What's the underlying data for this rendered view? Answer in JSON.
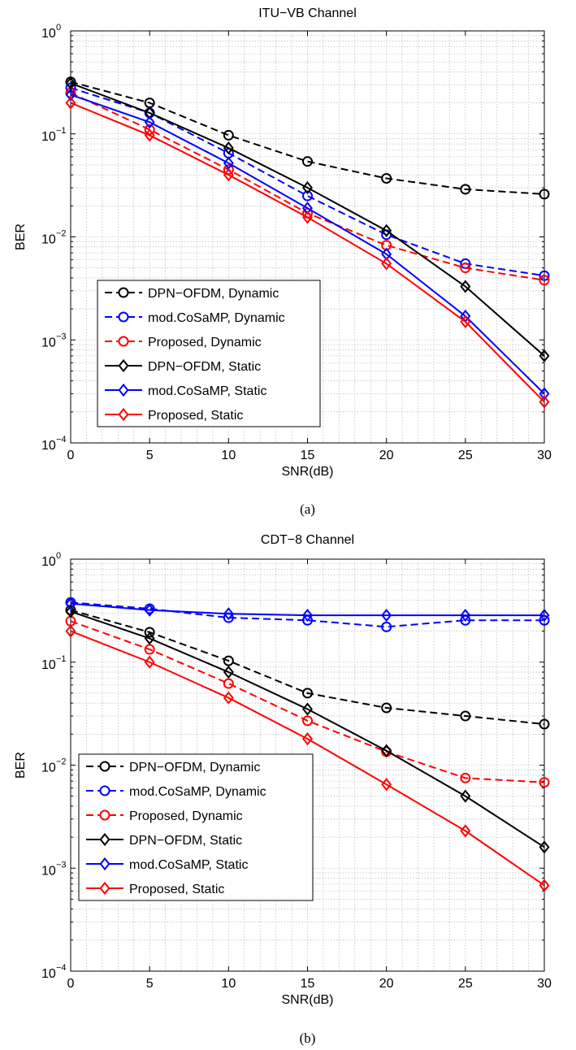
{
  "chart_data": [
    {
      "type": "line",
      "title": "ITU−VB Channel",
      "xlabel": "SNR(dB)",
      "ylabel": "BER",
      "caption": "(a)",
      "xlim": [
        0,
        30
      ],
      "ylim": [
        0.0001,
        1
      ],
      "yscale": "log",
      "grid": true,
      "legend_position": "lower-left",
      "x_ticks": [
        "0",
        "5",
        "10",
        "15",
        "20",
        "25",
        "30"
      ],
      "y_ticks": [
        {
          "base": "10",
          "exp": "0"
        },
        {
          "base": "10",
          "exp": "−1"
        },
        {
          "base": "10",
          "exp": "−2"
        },
        {
          "base": "10",
          "exp": "−3"
        },
        {
          "base": "10",
          "exp": "−4"
        }
      ],
      "series": [
        {
          "name": "DPN−OFDM, Dynamic",
          "color": "#000000",
          "dash": "dashed",
          "marker": "circle",
          "x": [
            0,
            5,
            10,
            15,
            20,
            25,
            30
          ],
          "y": [
            0.32,
            0.2,
            0.097,
            0.054,
            0.037,
            0.029,
            0.026
          ]
        },
        {
          "name": "mod.CoSaMP, Dynamic",
          "color": "#0000ff",
          "dash": "dashed",
          "marker": "circle",
          "x": [
            0,
            5,
            10,
            15,
            20,
            25,
            30
          ],
          "y": [
            0.28,
            0.16,
            0.065,
            0.025,
            0.0105,
            0.0055,
            0.0042
          ]
        },
        {
          "name": "Proposed, Dynamic",
          "color": "#ff0000",
          "dash": "dashed",
          "marker": "circle",
          "x": [
            0,
            5,
            10,
            15,
            20,
            25,
            30
          ],
          "y": [
            0.25,
            0.11,
            0.045,
            0.017,
            0.0083,
            0.005,
            0.0038
          ]
        },
        {
          "name": "DPN−OFDM, Static",
          "color": "#000000",
          "dash": "solid",
          "marker": "diamond",
          "x": [
            0,
            5,
            10,
            15,
            20,
            25,
            30
          ],
          "y": [
            0.31,
            0.16,
            0.073,
            0.03,
            0.0115,
            0.0033,
            0.0007
          ]
        },
        {
          "name": "mod.CoSaMP, Static",
          "color": "#0000ff",
          "dash": "solid",
          "marker": "diamond",
          "x": [
            0,
            5,
            10,
            15,
            20,
            25,
            30
          ],
          "y": [
            0.24,
            0.13,
            0.052,
            0.019,
            0.0068,
            0.0017,
            0.0003
          ]
        },
        {
          "name": "Proposed, Static",
          "color": "#ff0000",
          "dash": "solid",
          "marker": "diamond",
          "x": [
            0,
            5,
            10,
            15,
            20,
            25,
            30
          ],
          "y": [
            0.2,
            0.097,
            0.04,
            0.0155,
            0.0055,
            0.0015,
            0.00025
          ]
        }
      ]
    },
    {
      "type": "line",
      "title": "CDT−8 Channel",
      "xlabel": "SNR(dB)",
      "ylabel": "BER",
      "caption": "(b)",
      "xlim": [
        0,
        30
      ],
      "ylim": [
        0.0001,
        1
      ],
      "yscale": "log",
      "grid": true,
      "legend_position": "lower-left",
      "x_ticks": [
        "0",
        "5",
        "10",
        "15",
        "20",
        "25",
        "30"
      ],
      "y_ticks": [
        {
          "base": "10",
          "exp": "0"
        },
        {
          "base": "10",
          "exp": "−1"
        },
        {
          "base": "10",
          "exp": "−2"
        },
        {
          "base": "10",
          "exp": "−3"
        },
        {
          "base": "10",
          "exp": "−4"
        }
      ],
      "series": [
        {
          "name": "DPN−OFDM, Dynamic",
          "color": "#000000",
          "dash": "dashed",
          "marker": "circle",
          "x": [
            0,
            5,
            10,
            15,
            20,
            25,
            30
          ],
          "y": [
            0.32,
            0.195,
            0.103,
            0.05,
            0.036,
            0.03,
            0.025
          ]
        },
        {
          "name": "mod.CoSaMP, Dynamic",
          "color": "#0000ff",
          "dash": "dashed",
          "marker": "circle",
          "x": [
            0,
            5,
            10,
            15,
            20,
            25,
            30
          ],
          "y": [
            0.38,
            0.33,
            0.27,
            0.255,
            0.22,
            0.255,
            0.255
          ]
        },
        {
          "name": "Proposed, Dynamic",
          "color": "#ff0000",
          "dash": "dashed",
          "marker": "circle",
          "x": [
            0,
            5,
            10,
            15,
            20,
            25,
            30
          ],
          "y": [
            0.25,
            0.133,
            0.062,
            0.027,
            0.0135,
            0.0075,
            0.0068
          ]
        },
        {
          "name": "DPN−OFDM, Static",
          "color": "#000000",
          "dash": "solid",
          "marker": "diamond",
          "x": [
            0,
            5,
            10,
            15,
            20,
            25,
            30
          ],
          "y": [
            0.31,
            0.17,
            0.08,
            0.035,
            0.0138,
            0.005,
            0.0016
          ]
        },
        {
          "name": "mod.CoSaMP, Static",
          "color": "#0000ff",
          "dash": "solid",
          "marker": "diamond",
          "x": [
            0,
            5,
            10,
            15,
            20,
            25,
            30
          ],
          "y": [
            0.37,
            0.32,
            0.295,
            0.285,
            0.285,
            0.285,
            0.285
          ]
        },
        {
          "name": "Proposed, Static",
          "color": "#ff0000",
          "dash": "solid",
          "marker": "diamond",
          "x": [
            0,
            5,
            10,
            15,
            20,
            25,
            30
          ],
          "y": [
            0.2,
            0.1,
            0.045,
            0.018,
            0.0065,
            0.0023,
            0.00068
          ]
        }
      ]
    }
  ]
}
